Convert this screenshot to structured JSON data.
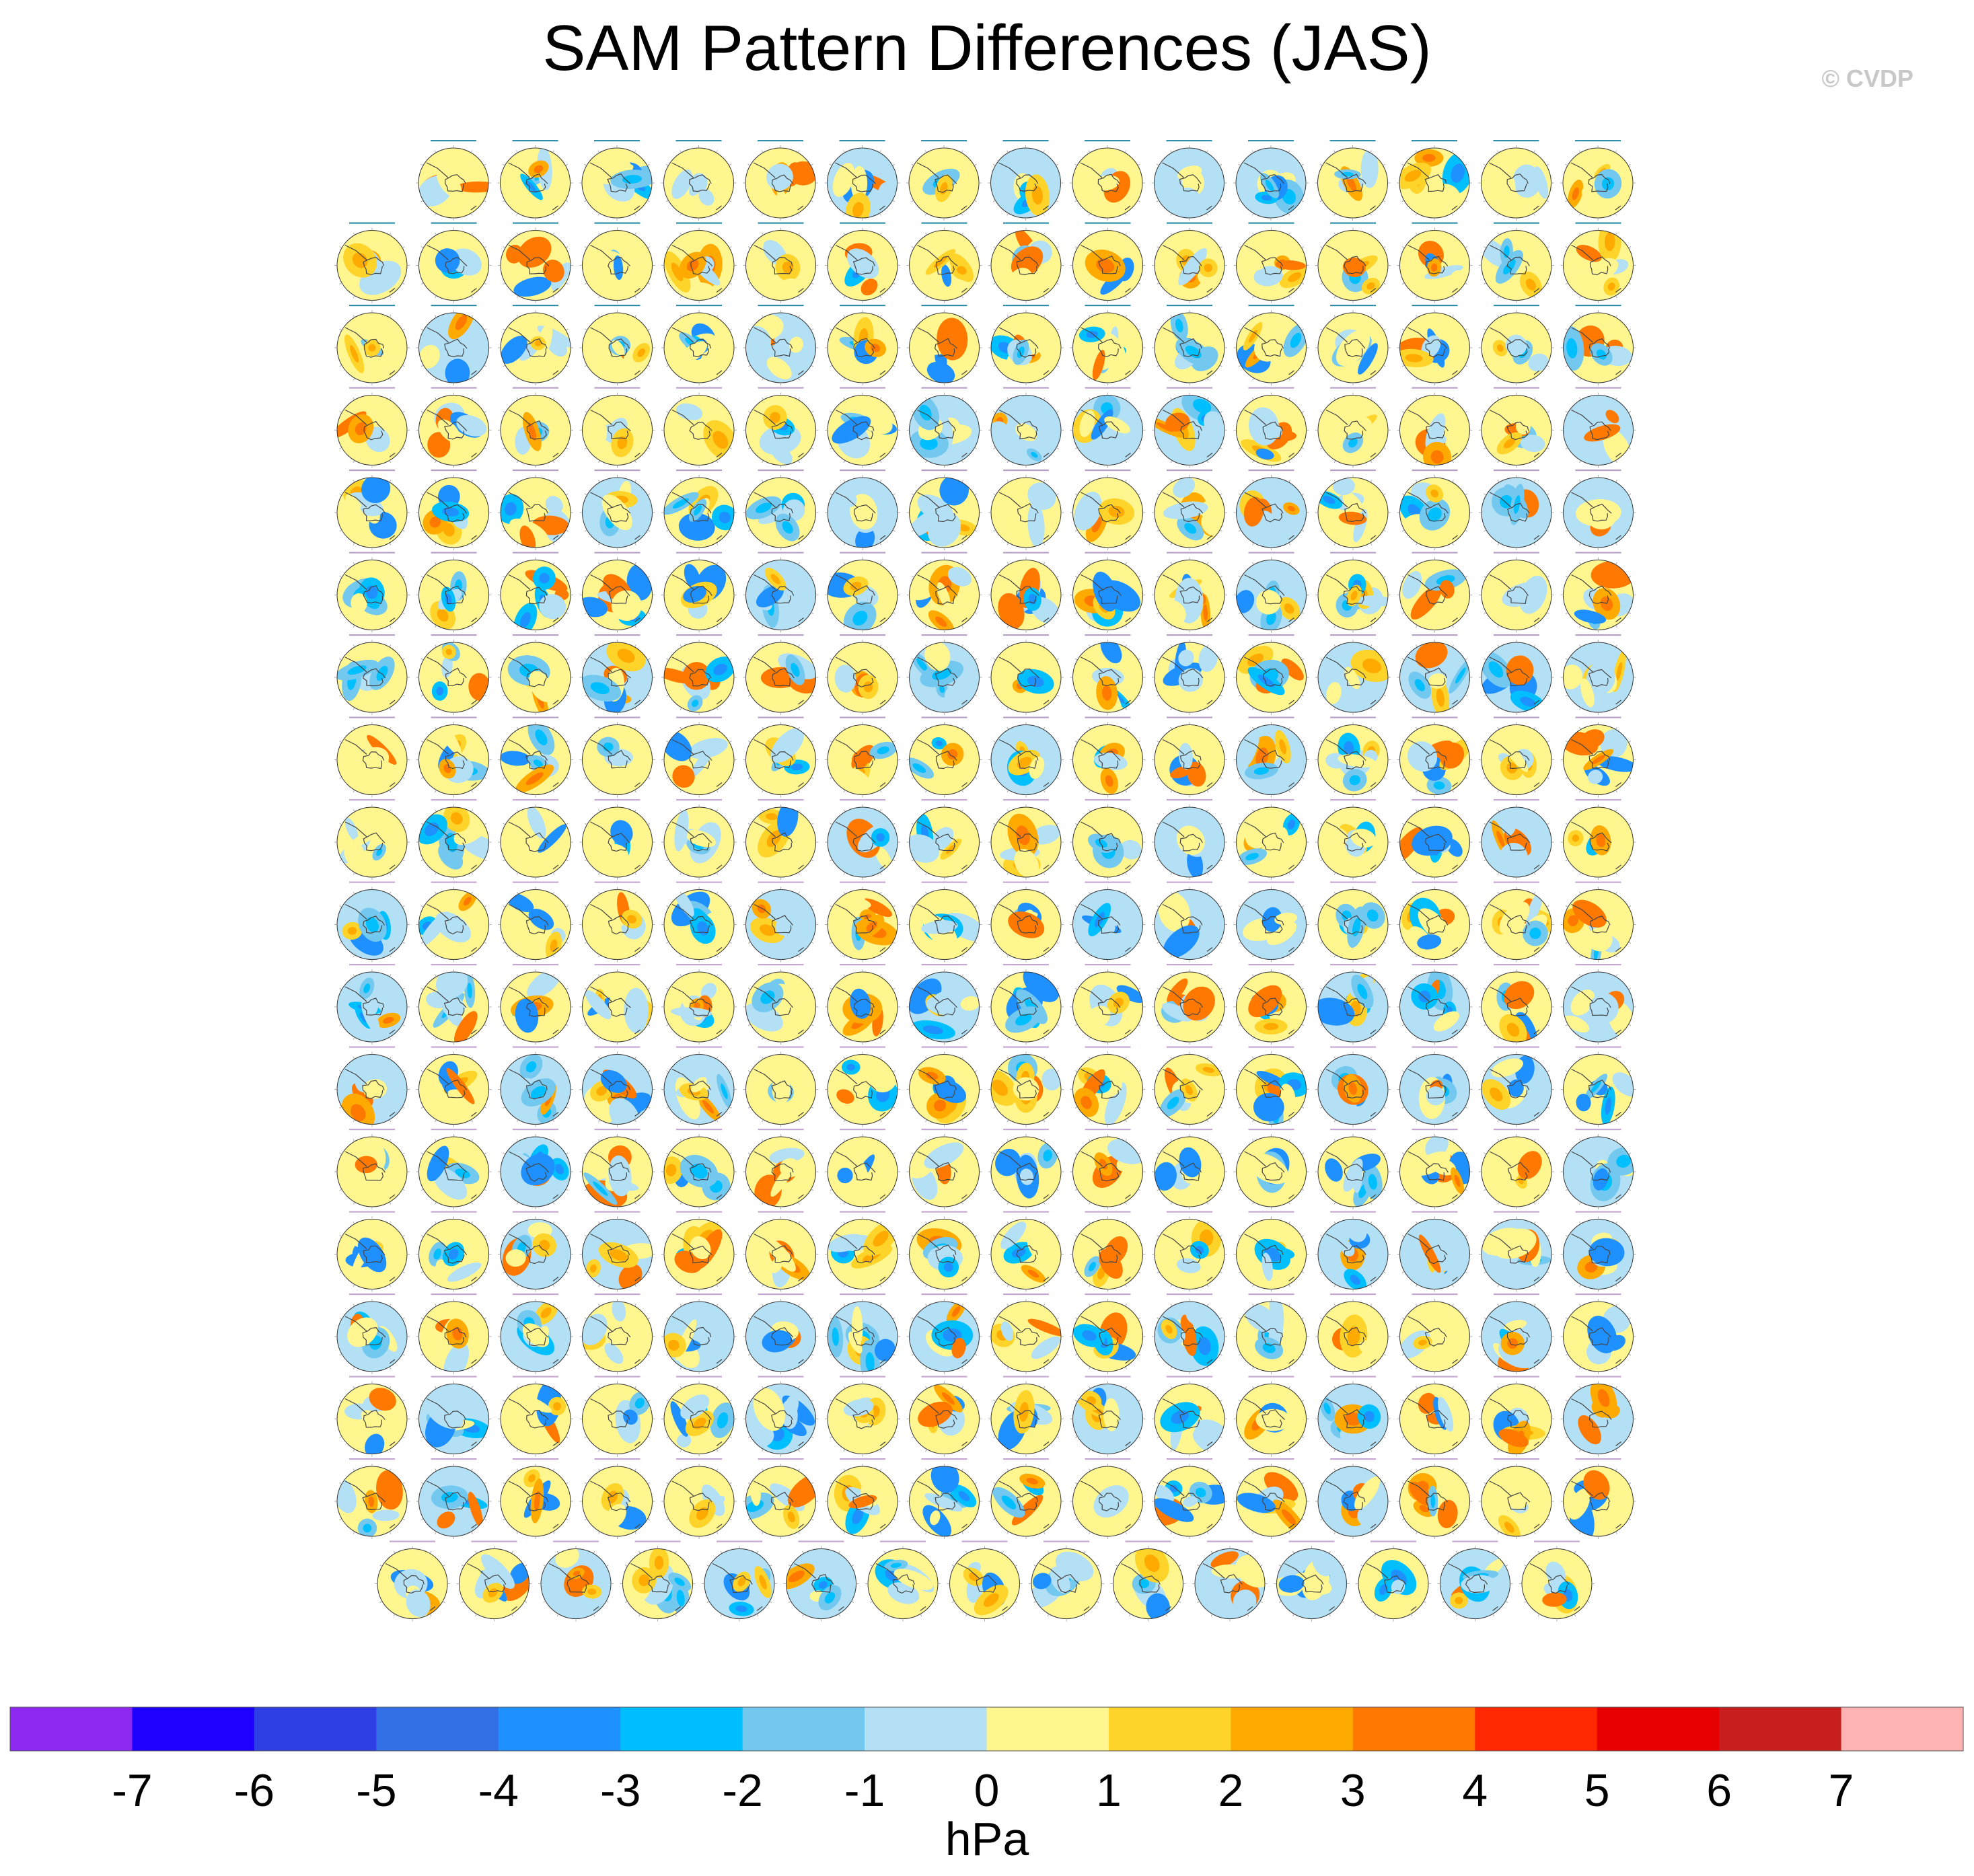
{
  "title": "SAM Pattern Differences (JAS)",
  "credit": "© CVDP",
  "chart_data": {
    "type": "heatmap",
    "title": "SAM Pattern Differences (JAS)",
    "description_grid": {
      "rows": [
        15,
        16,
        16,
        16,
        16,
        16,
        16,
        16,
        16,
        16,
        16,
        16,
        16,
        16,
        16,
        16,
        16,
        15
      ],
      "total_panels": 286
    },
    "colorbar": {
      "unit": "hPa",
      "tick_labels": [
        "-7",
        "-6",
        "-5",
        "-4",
        "-3",
        "-2",
        "-1",
        "0",
        "1",
        "2",
        "3",
        "4",
        "5",
        "6",
        "7"
      ],
      "bins": [
        {
          "range": "< -7",
          "color": "#8c28f0"
        },
        {
          "range": "-7 to -6",
          "color": "#1e00ff"
        },
        {
          "range": "-6 to -5",
          "color": "#2e3fe6"
        },
        {
          "range": "-5 to -4",
          "color": "#3370e6"
        },
        {
          "range": "-4 to -3",
          "color": "#1e90ff"
        },
        {
          "range": "-3 to -2",
          "color": "#00bfff"
        },
        {
          "range": "-2 to -1",
          "color": "#73c8f0"
        },
        {
          "range": "-1 to 0",
          "color": "#b4e0f5"
        },
        {
          "range": "0 to 1",
          "color": "#fff68f"
        },
        {
          "range": "1 to 2",
          "color": "#ffd42a"
        },
        {
          "range": "2 to 3",
          "color": "#ffaa00"
        },
        {
          "range": "3 to 4",
          "color": "#ff7800"
        },
        {
          "range": "4 to 5",
          "color": "#ff2800"
        },
        {
          "range": "5 to 6",
          "color": "#e60000"
        },
        {
          "range": "6 to 7",
          "color": "#c81e1e"
        },
        {
          "range": "> 7",
          "color": "#ffb4b4"
        }
      ]
    }
  }
}
